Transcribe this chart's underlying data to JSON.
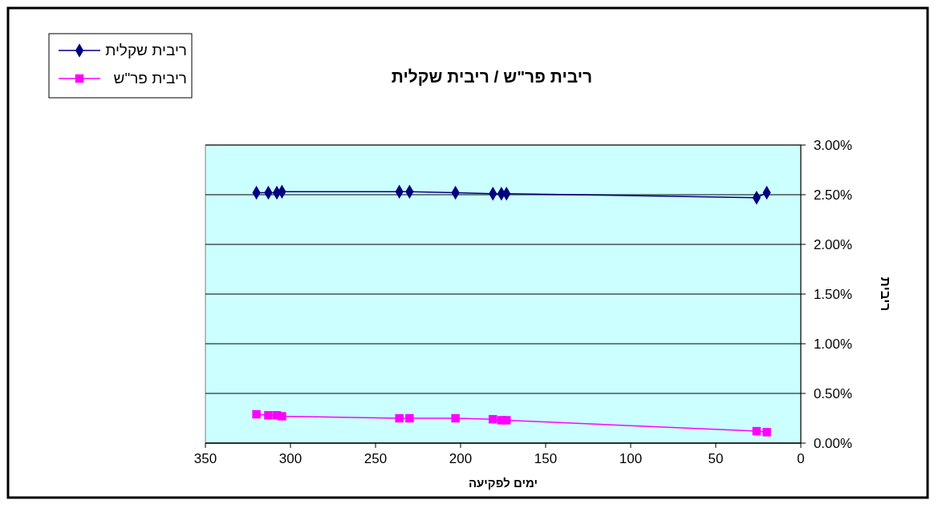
{
  "chart_data": {
    "type": "line",
    "title": "ריבית פר\"ש / ריבית שקלית",
    "xlabel": "ימים לפקיעה",
    "ylabel": "ריבית",
    "xlim": [
      350,
      0
    ],
    "xticks": [
      350,
      300,
      250,
      200,
      150,
      100,
      50,
      0
    ],
    "ylim": [
      0,
      3
    ],
    "yticks": [
      {
        "value": 0,
        "label": "0.00%"
      },
      {
        "value": 0.5,
        "label": "0.50%"
      },
      {
        "value": 1,
        "label": "1.00%"
      },
      {
        "value": 1.5,
        "label": "1.50%"
      },
      {
        "value": 2,
        "label": "2.00%"
      },
      {
        "value": 2.5,
        "label": "2.50%"
      },
      {
        "value": 3,
        "label": "3.00%"
      }
    ],
    "grid": "y",
    "legend": "top left",
    "x": [
      320,
      313,
      308,
      305,
      236,
      230,
      203,
      181,
      176,
      173,
      26,
      20
    ],
    "series": [
      {
        "name": "ריבית שקלית",
        "color": "#000080",
        "marker": "diamond",
        "values": [
          2.52,
          2.52,
          2.52,
          2.53,
          2.53,
          2.53,
          2.52,
          2.51,
          2.51,
          2.51,
          2.47,
          2.52
        ]
      },
      {
        "name": "ריבית פר\"ש",
        "color": "#ff00ff",
        "marker": "square",
        "values": [
          0.29,
          0.28,
          0.28,
          0.27,
          0.25,
          0.25,
          0.25,
          0.24,
          0.23,
          0.23,
          0.12,
          0.11
        ]
      }
    ]
  }
}
